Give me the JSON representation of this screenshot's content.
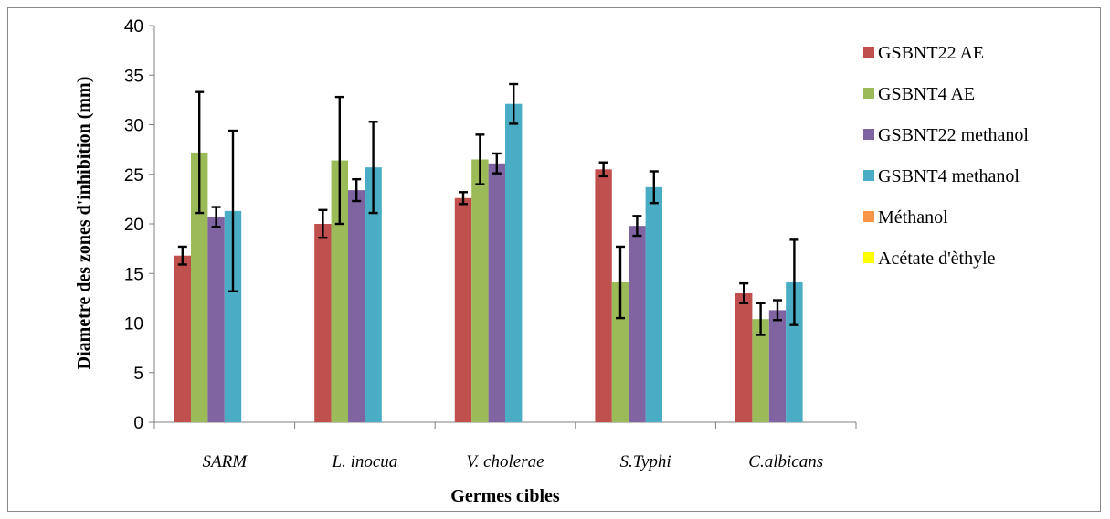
{
  "chart_data": {
    "type": "bar",
    "title": "",
    "xlabel": "Germes cibles",
    "ylabel": "Diametre des zones d'inhibition (mm)",
    "ylim": [
      0,
      40
    ],
    "yticks": [
      0,
      5,
      10,
      15,
      20,
      25,
      30,
      35,
      40
    ],
    "grid": false,
    "legend_position": "right",
    "categories": [
      "SARM",
      "L. inocua",
      "V. cholerae",
      "S.Typhi",
      "C.albicans"
    ],
    "series": [
      {
        "name": "GSBNT22 AE",
        "color": "#C0504D",
        "values": [
          16.8,
          20.0,
          22.6,
          25.5,
          13.0
        ],
        "errors": [
          0.9,
          1.4,
          0.6,
          0.7,
          1.0
        ]
      },
      {
        "name": "GSBNT4 AE",
        "color": "#9BBB59",
        "values": [
          27.2,
          26.4,
          26.5,
          14.1,
          10.4
        ],
        "errors": [
          6.1,
          6.4,
          2.5,
          3.6,
          1.6
        ]
      },
      {
        "name": "GSBNT22 methanol",
        "color": "#8064A2",
        "values": [
          20.7,
          23.4,
          26.1,
          19.8,
          11.3
        ],
        "errors": [
          1.0,
          1.1,
          1.0,
          1.0,
          1.0
        ]
      },
      {
        "name": "GSBNT4 methanol",
        "color": "#4BACC6",
        "values": [
          21.3,
          25.7,
          32.1,
          23.7,
          14.1
        ],
        "errors": [
          8.1,
          4.6,
          2.0,
          1.6,
          4.3
        ]
      },
      {
        "name": "Méthanol",
        "color": "#F79646",
        "values": [
          0,
          0,
          0,
          0,
          0
        ],
        "errors": [
          0,
          0,
          0,
          0,
          0
        ]
      },
      {
        "name": "Acétate d'èthyle",
        "color": "#FFFF00",
        "values": [
          0,
          0,
          0,
          0,
          0
        ],
        "errors": [
          0,
          0,
          0,
          0,
          0
        ]
      }
    ]
  }
}
